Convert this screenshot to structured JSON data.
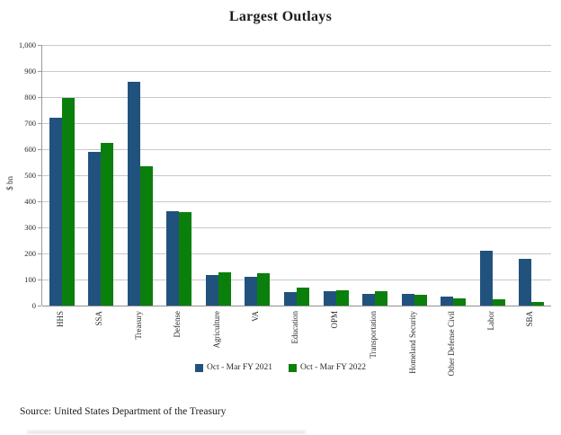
{
  "chart_data": {
    "type": "bar",
    "title": "Largest Outlays",
    "ylabel": "$ bn",
    "xlabel": "",
    "categories": [
      "HHS",
      "SSA",
      "Treasury",
      "Defense",
      "Agriculture",
      "VA",
      "Education",
      "OPM",
      "Transportation",
      "Homeland Security",
      "Other Defense Civil",
      "Labor",
      "SBA"
    ],
    "series": [
      {
        "name": "Oct - Mar FY 2021",
        "color": "#21527E",
        "values": [
          720,
          589,
          860,
          362,
          116,
          112,
          52,
          54,
          46,
          46,
          34,
          210,
          178
        ]
      },
      {
        "name": "Oct - Mar FY 2022",
        "color": "#0B7F0B",
        "values": [
          795,
          623,
          533,
          357,
          128,
          123,
          68,
          58,
          54,
          41,
          29,
          25,
          15
        ]
      }
    ],
    "ylim": [
      0,
      1000
    ],
    "ytick_step": 100,
    "ytick_labels": [
      "0",
      "100",
      "200",
      "300",
      "400",
      "500",
      "600",
      "700",
      "800",
      "900",
      "1,000"
    ],
    "grid": true,
    "legend_position": "bottom"
  },
  "source_note": "Source: United States Department of the Treasury",
  "colors": {
    "grid": "#C9C9C9",
    "axis": "#9B9B9B",
    "series_2021": "#21527E",
    "series_2022": "#0B7F0B"
  }
}
